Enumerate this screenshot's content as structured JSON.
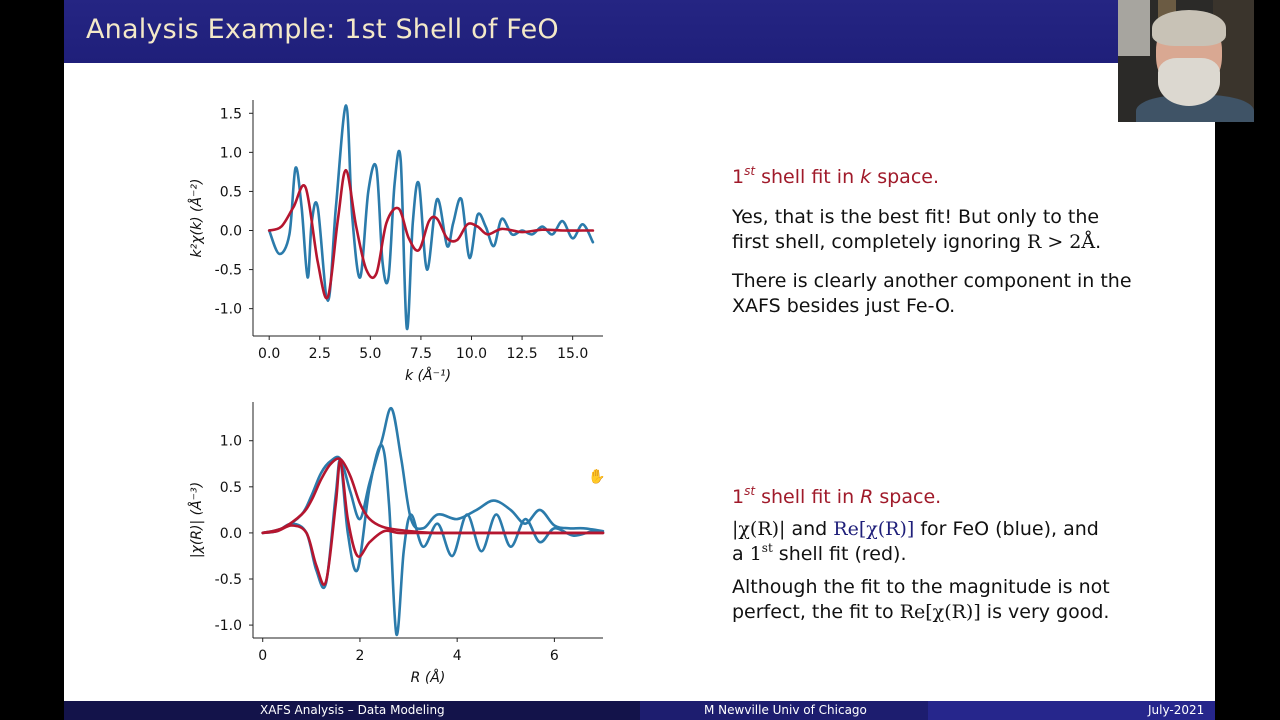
{
  "slide": {
    "title": "Analysis Example:  1st Shell of FeO",
    "footer_left": "XAFS Analysis – Data Modeling",
    "footer_center": "M Newville  Univ of Chicago",
    "footer_right": "July-2021"
  },
  "text_k": {
    "heading_pre": "1",
    "heading_sup": "st",
    "heading_mid": " shell fit in ",
    "heading_var": "k",
    "heading_post": " space.",
    "p1_line1": "Yes, that is the best fit!  But only to the",
    "p1_line2_pre": "first shell, completely ignoring ",
    "p1_line2_math": "R > 2Å",
    "p1_line2_post": ".",
    "p2_line1": "There is clearly another component in the",
    "p2_line2": "XAFS besides just Fe-O."
  },
  "text_r": {
    "heading_pre": "1",
    "heading_sup": "st",
    "heading_mid": " shell fit in ",
    "heading_var": "R",
    "heading_post": " space.",
    "l1_mag": "|χ(R)|",
    "l1_and": " and ",
    "l1_re": "Re[χ(R)]",
    "l1_post": " for FeO (blue), and",
    "l2_pre": "a ",
    "l2_num": "1",
    "l2_sup": "st",
    "l2_post": " shell fit (red).",
    "l3": "Although the fit to the magnitude is not",
    "l4_pre": "perfect, the fit to ",
    "l4_re": "Re[χ(R)]",
    "l4_post": " is very good."
  },
  "colors": {
    "data": "#2b7bab",
    "fit": "#b5162f",
    "title_bg": "#1f1f7a",
    "title_text": "#f4e9c8",
    "highlight": "#a01a2a"
  },
  "chart_data": [
    {
      "type": "line",
      "xlabel": "k (Å⁻¹)",
      "ylabel": "k²χ(k) (Å⁻²)",
      "xlim": [
        -0.8,
        16.5
      ],
      "ylim": [
        -1.35,
        1.67
      ],
      "xticks": [
        0,
        2.5,
        5,
        7.5,
        10,
        12.5,
        15
      ],
      "xtick_labels": [
        "0.0",
        "2.5",
        "5.0",
        "7.5",
        "10.0",
        "12.5",
        "15.0"
      ],
      "yticks": [
        -1.0,
        -0.5,
        0.0,
        0.5,
        1.0,
        1.5
      ],
      "ytick_labels": [
        "-1.0",
        "-0.5",
        "0.0",
        "0.5",
        "1.0",
        "1.5"
      ],
      "series": [
        {
          "role": "data",
          "color": "#2b7bab",
          "x": [
            0,
            0.5,
            1.0,
            1.3,
            1.6,
            1.9,
            2.1,
            2.4,
            2.9,
            3.3,
            3.8,
            4.1,
            4.5,
            4.9,
            5.3,
            5.6,
            5.9,
            6.2,
            6.5,
            6.8,
            7.1,
            7.4,
            7.8,
            8.3,
            8.8,
            9.1,
            9.5,
            9.9,
            10.3,
            10.7,
            11.1,
            11.5,
            12.0,
            12.5,
            13.0,
            13.5,
            14.0,
            14.5,
            15.0,
            15.5,
            16.0
          ],
          "y": [
            0,
            -0.3,
            -0.05,
            0.8,
            0.3,
            -0.6,
            0.1,
            0.3,
            -0.9,
            0.3,
            1.6,
            0.2,
            -0.6,
            0.5,
            0.8,
            -0.4,
            -0.6,
            0.6,
            0.9,
            -1.25,
            0.1,
            0.6,
            -0.5,
            0.4,
            -0.2,
            0.1,
            0.4,
            -0.35,
            0.2,
            0.05,
            -0.2,
            0.15,
            -0.05,
            0.0,
            -0.05,
            0.05,
            -0.05,
            0.12,
            -0.1,
            0.08,
            -0.15
          ]
        },
        {
          "role": "fit",
          "color": "#b5162f",
          "x": [
            0,
            0.6,
            1.2,
            1.8,
            2.4,
            2.9,
            3.4,
            3.8,
            4.3,
            4.8,
            5.3,
            5.8,
            6.4,
            6.9,
            7.4,
            7.9,
            8.3,
            8.8,
            9.3,
            9.8,
            10.3,
            10.8,
            11.5,
            12.5,
            13.5,
            14.5,
            15.5,
            16.0
          ],
          "y": [
            0,
            0.05,
            0.3,
            0.55,
            -0.4,
            -0.85,
            0.15,
            0.77,
            0.05,
            -0.5,
            -0.55,
            0.1,
            0.28,
            -0.1,
            -0.25,
            0.12,
            0.15,
            -0.1,
            -0.12,
            0.08,
            0.05,
            -0.05,
            0.02,
            -0.02,
            0.01,
            0.0,
            0.0,
            0.0
          ]
        }
      ]
    },
    {
      "type": "line",
      "xlabel": "R (Å)",
      "ylabel": "|χ(R)| (Å⁻³)",
      "xlim": [
        -0.2,
        7.0
      ],
      "ylim": [
        -1.14,
        1.42
      ],
      "xticks": [
        0,
        2,
        4,
        6
      ],
      "xtick_labels": [
        "0",
        "2",
        "4",
        "6"
      ],
      "yticks": [
        -1.0,
        -0.5,
        0.0,
        0.5,
        1.0
      ],
      "ytick_labels": [
        "-1.0",
        "-0.5",
        "0.0",
        "0.5",
        "1.0"
      ],
      "series": [
        {
          "role": "data_magnitude",
          "color": "#2b7bab",
          "x": [
            0,
            0.4,
            0.8,
            1.0,
            1.2,
            1.4,
            1.6,
            1.8,
            2.0,
            2.2,
            2.45,
            2.65,
            2.85,
            3.05,
            3.3,
            3.6,
            4.0,
            4.4,
            4.75,
            5.1,
            5.4,
            5.7,
            6.0,
            6.3,
            6.6,
            7.0
          ],
          "y": [
            0,
            0.05,
            0.2,
            0.4,
            0.65,
            0.78,
            0.8,
            0.45,
            0.15,
            0.55,
            1.0,
            1.35,
            0.8,
            0.15,
            0.05,
            0.2,
            0.15,
            0.25,
            0.35,
            0.25,
            0.1,
            0.25,
            0.08,
            0.05,
            0.05,
            0.02
          ]
        },
        {
          "role": "data_real",
          "color": "#2b7bab",
          "x": [
            0,
            0.3,
            0.6,
            0.9,
            1.1,
            1.3,
            1.5,
            1.6,
            1.75,
            1.95,
            2.2,
            2.45,
            2.6,
            2.75,
            2.9,
            3.05,
            3.3,
            3.6,
            3.9,
            4.2,
            4.5,
            4.8,
            5.1,
            5.4,
            5.7,
            6.0,
            6.4,
            6.8,
            7.0
          ],
          "y": [
            0,
            0.02,
            0.1,
            0.0,
            -0.4,
            -0.55,
            0.4,
            0.78,
            0.0,
            -0.4,
            0.5,
            0.95,
            0.3,
            -1.1,
            -0.2,
            0.2,
            -0.15,
            0.1,
            -0.25,
            0.2,
            -0.2,
            0.2,
            -0.15,
            0.15,
            -0.1,
            0.05,
            -0.03,
            0.02,
            0.0
          ]
        },
        {
          "role": "fit_magnitude",
          "color": "#b5162f",
          "x": [
            0,
            0.4,
            0.8,
            1.0,
            1.2,
            1.4,
            1.6,
            1.8,
            2.0,
            2.2,
            2.5,
            3.0,
            3.5,
            4.0,
            5.0,
            6.0,
            7.0
          ],
          "y": [
            0,
            0.05,
            0.2,
            0.35,
            0.58,
            0.75,
            0.8,
            0.62,
            0.32,
            0.15,
            0.06,
            0.02,
            0.0,
            0.0,
            0.0,
            0.0,
            0.0
          ]
        },
        {
          "role": "fit_real",
          "color": "#b5162f",
          "x": [
            0,
            0.3,
            0.6,
            0.9,
            1.1,
            1.3,
            1.5,
            1.6,
            1.75,
            1.95,
            2.2,
            2.5,
            2.8,
            3.2,
            4.0,
            5.0,
            6.0,
            7.0
          ],
          "y": [
            0,
            0.02,
            0.08,
            0.0,
            -0.35,
            -0.53,
            0.3,
            0.78,
            0.15,
            -0.25,
            -0.1,
            0.02,
            0.0,
            0.0,
            0.0,
            0.0,
            0.0,
            0.0
          ]
        }
      ]
    }
  ]
}
